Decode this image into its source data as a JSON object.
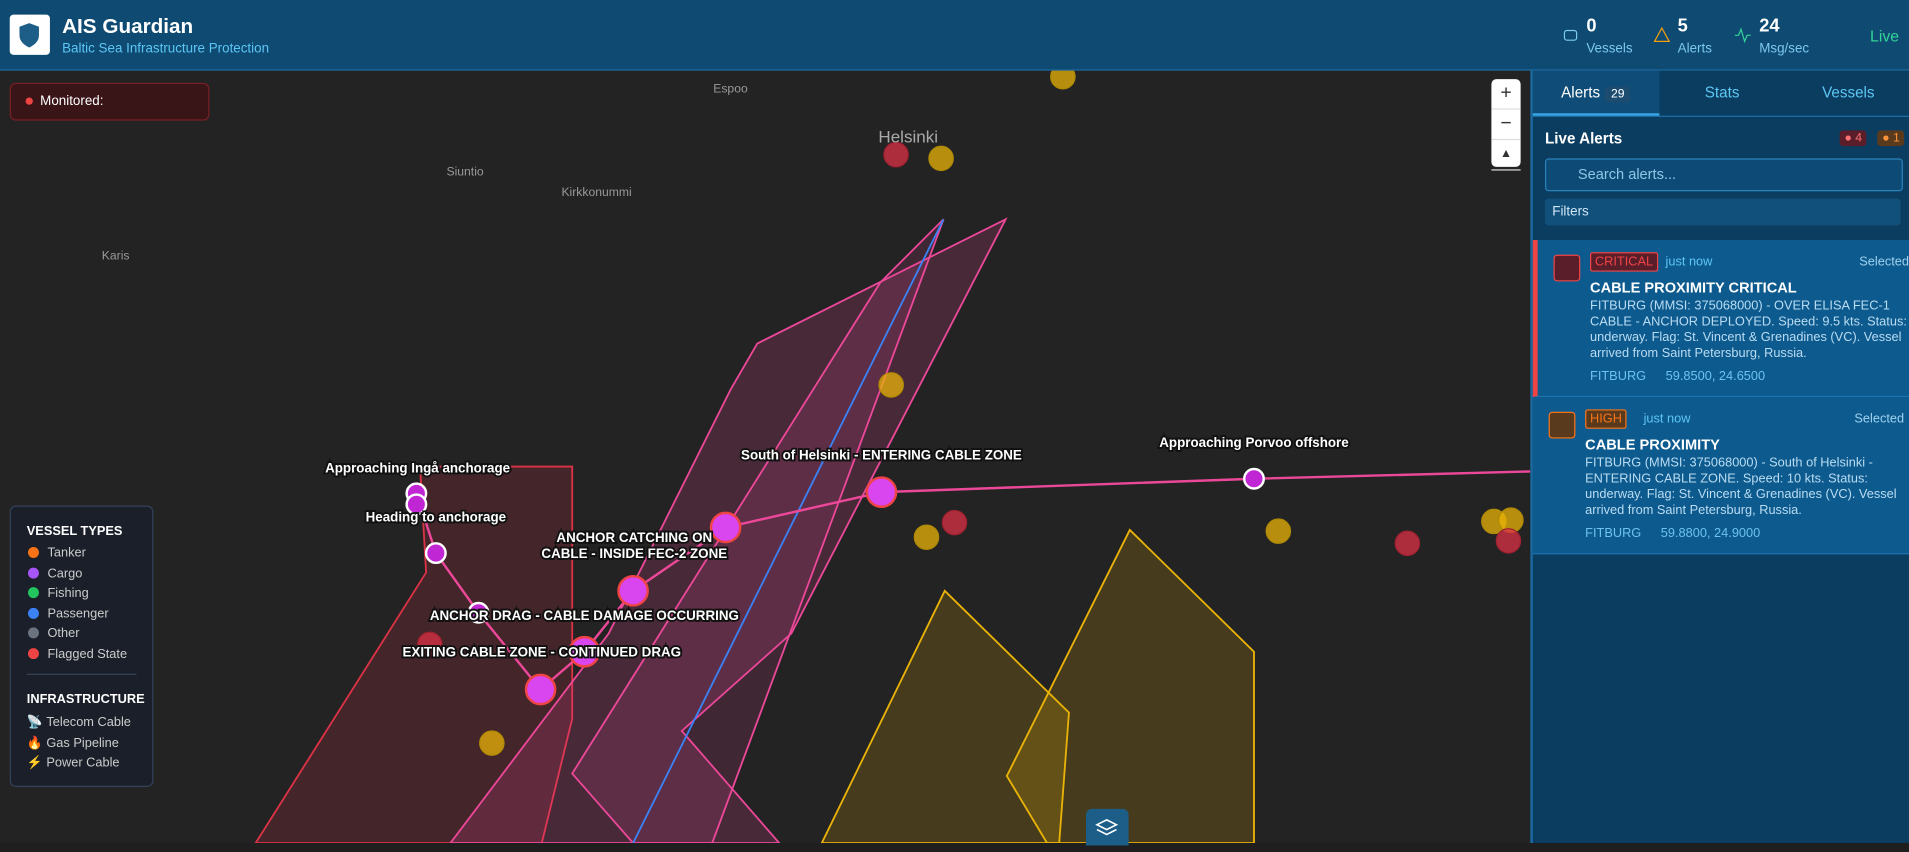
{
  "header": {
    "title": "AIS Guardian",
    "subtitle": "Baltic Sea Infrastructure Protection",
    "stats": [
      {
        "value": 0,
        "label": "Vessels"
      },
      {
        "value": 5,
        "label": "Alerts"
      },
      {
        "value": 24,
        "label": "Msg/sec"
      }
    ],
    "live": "Live"
  },
  "map": {
    "monitored": "Monitored:",
    "zoom_in": "+",
    "zoom_out": "−",
    "places": [
      "Espoo",
      "Helsinki",
      "Siuntio",
      "Kirkkonummi",
      "Karis"
    ],
    "vessel_labels": [
      "Approaching Ingå anchorage",
      "Heading to anchorage",
      "ANCHOR CATCHING ON",
      "CABLE - INSIDE FEC-2 ZONE",
      "ANCHOR DRAG - CABLE DAMAGE OCCURRING",
      "EXITING CABLE ZONE - CONTINUED DRAG",
      "South of Helsinki - ENTERING CABLE ZONE",
      "Approaching Porvoo offshore"
    ],
    "legend": {
      "title": "VESSEL TYPES",
      "items": [
        {
          "label": "Tanker",
          "color": "#f97316"
        },
        {
          "label": "Cargo",
          "color": "#a855f7"
        },
        {
          "label": "Fishing",
          "color": "#22c55e"
        },
        {
          "label": "Passenger",
          "color": "#3b82f6"
        },
        {
          "label": "Other",
          "color": "#6b7280"
        },
        {
          "label": "Flagged State",
          "color": "#ef4444"
        }
      ],
      "infra_title": "INFRASTRUCTURE",
      "infra": [
        {
          "icon": "📡",
          "label": "Telecom Cable"
        },
        {
          "icon": "🔥",
          "label": "Gas Pipeline"
        },
        {
          "icon": "⚡",
          "label": "Power Cable"
        }
      ]
    }
  },
  "sidebar": {
    "tabs": [
      {
        "label": "Alerts",
        "badge": 29
      },
      {
        "label": "Stats"
      },
      {
        "label": "Vessels"
      }
    ],
    "heading": "Live Alerts",
    "critical_count": 4,
    "high_count": 1,
    "search_placeholder": "Search alerts...",
    "filters": "Filters",
    "alerts": [
      {
        "severity": "CRITICAL",
        "time": "just now",
        "status": "Selected",
        "title": "CABLE PROXIMITY CRITICAL",
        "body": "FITBURG (MMSI: 375068000) - OVER ELISA FEC-1 CABLE - ANCHOR DEPLOYED. Speed: 9.5 kts. Status: underway. Flag: St. Vincent & Grenadines (VC). Vessel arrived from Saint Petersburg, Russia.",
        "vessel": "FITBURG",
        "position": "59.8500, 24.6500"
      },
      {
        "severity": "HIGH",
        "time": "just now",
        "status": "Selected",
        "title": "CABLE PROXIMITY",
        "body": "FITBURG (MMSI: 375068000) - South of Helsinki - ENTERING CABLE ZONE. Speed: 10 kts. Status: underway. Flag: St. Vincent & Grenadines (VC). Vessel arrived from Saint Petersburg, Russia.",
        "vessel": "FITBURG",
        "position": "59.8800, 24.9000"
      }
    ]
  }
}
